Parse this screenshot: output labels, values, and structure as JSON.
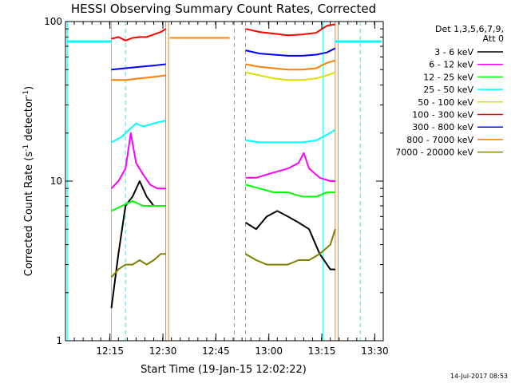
{
  "chart_data": {
    "type": "line",
    "title": "HESSI Observing Summary Count Rates, Corrected",
    "xlabel": "Start Time (19-Jan-15 12:02:22)",
    "ylabel_main": "Corrected Count Rate (s",
    "ylabel_sup1": "-1",
    "ylabel_mid": " detector",
    "ylabel_sup2": "-1",
    "ylabel_end": ")",
    "x_unit": "minutes since 12:02:22",
    "xlim": [
      0,
      90
    ],
    "ylim": [
      1,
      100
    ],
    "yscale": "log",
    "xticks": [
      {
        "t": 12.6,
        "label": "12:15"
      },
      {
        "t": 27.6,
        "label": "12:30"
      },
      {
        "t": 42.6,
        "label": "12:45"
      },
      {
        "t": 57.6,
        "label": "13:00"
      },
      {
        "t": 72.6,
        "label": "13:15"
      },
      {
        "t": 87.6,
        "label": "13:30"
      }
    ],
    "yticks": [
      {
        "v": 1,
        "label": "1"
      },
      {
        "v": 10,
        "label": "10"
      },
      {
        "v": 100,
        "label": "100"
      }
    ],
    "legend_header": [
      "Det 1,3,5,6,7,9,",
      "Att 0"
    ],
    "legend_position": "right",
    "series": [
      {
        "name": "3 - 6 keV",
        "color": "#000000",
        "segments": [
          {
            "x": [
              13,
              15,
              17,
              19,
              21,
              23,
              25,
              27,
              28.4
            ],
            "y": [
              1.6,
              3.5,
              7.0,
              8.0,
              10.0,
              8.0,
              7.0,
              7.0,
              7.0
            ]
          },
          {
            "x": [
              51,
              54,
              57,
              60,
              63,
              66,
              69,
              72,
              75,
              76.4
            ],
            "y": [
              5.5,
              5.0,
              6.0,
              6.5,
              6.0,
              5.5,
              5.0,
              3.5,
              2.8,
              2.8
            ]
          }
        ]
      },
      {
        "name": "6 - 12 keV",
        "color": "#ff00ff",
        "segments": [
          {
            "x": [
              13,
              15,
              17,
              18.5,
              20,
              22,
              24,
              26,
              28.4
            ],
            "y": [
              9.0,
              10.0,
              12.0,
              20.0,
              13.0,
              11.0,
              9.5,
              9.0,
              9.0
            ]
          },
          {
            "x": [
              51,
              54,
              57,
              60,
              63,
              66,
              67.5,
              69,
              72,
              75,
              76.4
            ],
            "y": [
              10.5,
              10.5,
              11.0,
              11.5,
              12.0,
              13.0,
              15.0,
              12.0,
              10.5,
              10.0,
              10.0
            ]
          }
        ]
      },
      {
        "name": "12 - 25 keV",
        "color": "#00ff00",
        "segments": [
          {
            "x": [
              13,
              16,
              19,
              22,
              25,
              28.4
            ],
            "y": [
              6.5,
              7.0,
              7.5,
              7.0,
              7.0,
              7.0
            ]
          },
          {
            "x": [
              51,
              55,
              59,
              63,
              67,
              71,
              74,
              76.4
            ],
            "y": [
              9.5,
              9.0,
              8.5,
              8.5,
              8.0,
              8.0,
              8.5,
              8.5
            ]
          }
        ]
      },
      {
        "name": "25 - 50 keV",
        "color": "#00ffff",
        "segments": [
          {
            "x": [
              13,
              16,
              18,
              20,
              22,
              25,
              28.4
            ],
            "y": [
              17.5,
              19.0,
              21.0,
              23.0,
              22.0,
              23.0,
              24.0
            ]
          },
          {
            "x": [
              51,
              55,
              59,
              63,
              67,
              71,
              74,
              76.4
            ],
            "y": [
              18.0,
              17.5,
              17.5,
              17.5,
              17.5,
              18.0,
              19.5,
              21.0
            ]
          }
        ]
      },
      {
        "name": "50 - 100 keV",
        "color": "#dddd00",
        "segments": [
          {
            "x": [
              51,
              55,
              59,
              63,
              67,
              71,
              74,
              76.4
            ],
            "y": [
              48.0,
              46.0,
              44.0,
              43.0,
              43.0,
              44.0,
              46.0,
              48.0
            ]
          }
        ]
      },
      {
        "name": "100 - 300 keV",
        "color": "#ff0000",
        "segments": [
          {
            "x": [
              13,
              15,
              17,
              19,
              21,
              23,
              25,
              27,
              28.4
            ],
            "y": [
              78.0,
              80.0,
              76.0,
              79.0,
              80.0,
              80.0,
              83.0,
              86.0,
              90.0
            ]
          },
          {
            "x": [
              51,
              55,
              59,
              63,
              67,
              71,
              74,
              76.4
            ],
            "y": [
              90.0,
              86.0,
              84.0,
              82.0,
              83.0,
              85.0,
              94.0,
              96.0
            ]
          }
        ]
      },
      {
        "name": "300 - 800 keV",
        "color": "#0000ff",
        "segments": [
          {
            "x": [
              13,
              17,
              21,
              25,
              28.4
            ],
            "y": [
              50.0,
              51.0,
              52.0,
              53.0,
              54.0
            ]
          },
          {
            "x": [
              51,
              55,
              59,
              63,
              67,
              71,
              74,
              76.4
            ],
            "y": [
              66.0,
              63.0,
              62.0,
              61.0,
              61.0,
              62.0,
              64.0,
              68.0
            ]
          }
        ]
      },
      {
        "name": "800 - 7000 keV",
        "color": "#ff8000",
        "segments": [
          {
            "x": [
              13,
              17,
              21,
              25,
              28.4
            ],
            "y": [
              43.0,
              43.0,
              44.0,
              45.0,
              46.0
            ]
          },
          {
            "x": [
              29.5,
              46.5
            ],
            "y": [
              79.0,
              79.0
            ]
          },
          {
            "x": [
              51,
              55,
              59,
              63,
              67,
              71,
              74,
              76.4
            ],
            "y": [
              54.0,
              52.0,
              51.0,
              50.0,
              50.0,
              51.0,
              55.0,
              57.0
            ]
          }
        ]
      },
      {
        "name": "7000 - 20000 keV",
        "color": "#808000",
        "segments": [
          {
            "x": [
              13,
              15,
              17,
              19,
              21,
              23,
              25,
              27,
              28.4
            ],
            "y": [
              2.5,
              2.8,
              3.0,
              3.0,
              3.2,
              3.0,
              3.2,
              3.5,
              3.5
            ]
          },
          {
            "x": [
              51,
              54,
              57,
              60,
              63,
              66,
              69,
              72,
              75,
              76.4
            ],
            "y": [
              3.5,
              3.2,
              3.0,
              3.0,
              3.0,
              3.2,
              3.2,
              3.5,
              4.0,
              5.0
            ]
          }
        ]
      }
    ],
    "markers": [
      {
        "label": "",
        "color": "#00ffff",
        "x": 0.5,
        "style": "solid"
      },
      {
        "label": "",
        "color": "#00ffff",
        "x": 13.0,
        "style": "solid"
      },
      {
        "label": "",
        "color": "#00ffff",
        "x": 17.0,
        "style": "dashed"
      },
      {
        "label": "",
        "color": "#00ffff",
        "x": 73.0,
        "style": "solid"
      },
      {
        "label": "",
        "color": "#00ffff",
        "x": 83.5,
        "style": "dashed"
      },
      {
        "label": "",
        "color": "#ff8000",
        "x": 28.4,
        "style": "solid"
      },
      {
        "label": "",
        "color": "#ff8000",
        "x": 29.2,
        "style": "solid"
      },
      {
        "label": "",
        "color": "#ff8000",
        "x": 47.8,
        "style": "dashed"
      },
      {
        "label": "",
        "color": "#ff8000",
        "x": 51.0,
        "style": "dashed"
      },
      {
        "label": "",
        "color": "#ff8000",
        "x": 76.4,
        "style": "solid"
      },
      {
        "label": "",
        "color": "#ff8000",
        "x": 77.2,
        "style": "solid"
      }
    ],
    "spans": [
      {
        "label": "",
        "color": "#00ffff",
        "x0": 0.5,
        "x1": 13.0,
        "y": 75.0
      },
      {
        "label": "",
        "color": "#00ffff",
        "x0": 76.4,
        "x1": 89.5,
        "y": 75.0
      }
    ]
  },
  "footer": {
    "date_stamp": "14-Jul-2017 08:53"
  }
}
